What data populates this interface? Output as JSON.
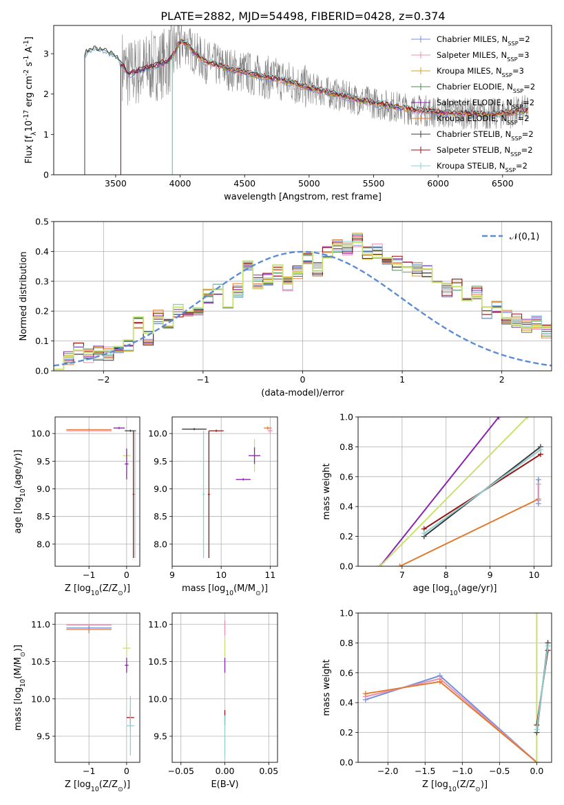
{
  "title": "PLATE=2882, MJD=54498, FIBERID=0428, z=0.374",
  "colors": {
    "chabrier_miles": "#6f8fdb",
    "salpeter_miles": "#e88fb0",
    "kroupa_miles": "#d4a020",
    "chabrier_elodie": "#4f8a4f",
    "salpeter_elodie": "#8a22b0",
    "kroupa_elodie": "#e07a30",
    "chabrier_stelib": "#3a3a3a",
    "salpeter_stelib": "#9a1010",
    "kroupa_stelib": "#8ecfcf",
    "green_yellow": "#c8e070",
    "data_grey": "#808080",
    "normal_curve": "#5b8bd8",
    "grid": "#b0b0b0"
  },
  "legend_labels": [
    "Chabrier MILES, N$_{SSP}$=2",
    "Salpeter MILES, N$_{SSP}$=3",
    "Kroupa MILES, N$_{SSP}$=3",
    "Chabrier ELODIE, N$_{SSP}$=2",
    "Salpeter ELODIE, N$_{SSP}$=2",
    "Kroupa ELODIE, N$_{SSP}$=2",
    "Chabrier STELIB, N$_{SSP}$=2",
    "Salpeter STELIB, N$_{SSP}$=2",
    "Kroupa STELIB, N$_{SSP}$=2"
  ],
  "chart_data": [
    {
      "type": "line",
      "id": "spectrum",
      "xlabel": "wavelength [Angstrom, rest frame]",
      "ylabel": "Flux [f$_\\lambda$10$^{-17}$ erg cm$^{-2}$ s$^{-1}$ A$^{-1}$]",
      "xlim": [
        3020,
        6880
      ],
      "ylim": [
        0,
        3.7
      ],
      "xticks": [
        3500,
        4000,
        4500,
        5000,
        5500,
        6000,
        6500
      ],
      "yticks": [
        0,
        1,
        2,
        3
      ],
      "grid": false,
      "legend": "top-right",
      "model_start_wavelengths": [
        3260,
        3540,
        3940
      ],
      "model_end_wavelength": 6700,
      "continuum": {
        "x": [
          3260,
          3300,
          3400,
          3500,
          3600,
          3700,
          3800,
          3900,
          3950,
          4000,
          4050,
          4100,
          4200,
          4300,
          4400,
          4500,
          4600,
          4700,
          4800,
          4900,
          5000,
          5200,
          5400,
          5600,
          5800,
          6000,
          6200,
          6400,
          6600,
          6700
        ],
        "y": [
          3.0,
          3.1,
          3.12,
          2.95,
          2.5,
          2.6,
          2.7,
          2.8,
          3.0,
          3.3,
          3.25,
          3.05,
          2.8,
          2.7,
          2.6,
          2.55,
          2.45,
          2.4,
          2.35,
          2.25,
          2.15,
          2.0,
          1.85,
          1.72,
          1.62,
          1.55,
          1.52,
          1.5,
          1.55,
          1.6
        ]
      },
      "data_noise_start": 3550
    },
    {
      "type": "histogram",
      "id": "residuals",
      "xlabel": "(data-model)/error",
      "ylabel": "Normed distribution",
      "xlim": [
        -2.5,
        2.5
      ],
      "ylim": [
        0,
        0.5
      ],
      "xticks": [
        -2,
        -1,
        0,
        1,
        2
      ],
      "yticks": [
        0.0,
        0.1,
        0.2,
        0.3,
        0.4,
        0.5
      ],
      "grid": true,
      "legend": "top-right",
      "legend_label": "$\\mathcal{N}(0,1)$",
      "bin_width": 0.1,
      "base_counts": [
        0.03,
        0.04,
        0.07,
        0.05,
        0.06,
        0.06,
        0.08,
        0.09,
        0.16,
        0.11,
        0.18,
        0.15,
        0.2,
        0.19,
        0.21,
        0.25,
        0.28,
        0.22,
        0.27,
        0.36,
        0.3,
        0.31,
        0.33,
        0.29,
        0.33,
        0.38,
        0.34,
        0.4,
        0.42,
        0.41,
        0.44,
        0.39,
        0.4,
        0.37,
        0.36,
        0.35,
        0.34,
        0.33,
        0.31,
        0.27,
        0.29,
        0.23,
        0.26,
        0.2,
        0.22,
        0.18,
        0.17,
        0.15,
        0.16,
        0.13,
        0.14,
        0.12,
        0.11,
        0.1,
        0.09,
        0.08,
        0.06,
        0.05,
        0.04,
        0.03,
        0.03,
        0.03,
        0.02,
        0.02,
        0.02,
        0.02,
        0.02,
        0.01,
        0.01,
        0.01
      ]
    },
    {
      "type": "scatter",
      "id": "z_age",
      "xlabel": "Z [log$_{10}$(Z/Z$_\\odot$)]",
      "ylabel": "age  [log$_{10}$(age/yr)]",
      "xlim": [
        -1.9,
        0.35
      ],
      "ylim": [
        7.6,
        10.3
      ],
      "xticks": [
        -1,
        0
      ],
      "yticks": [
        8.0,
        8.5,
        9.0,
        9.5,
        10.0
      ],
      "grid": true,
      "points": [
        {
          "x": -1.0,
          "y": 10.07,
          "xerr": 0.6,
          "yerr": 0.02,
          "series": "kroupa_elodie"
        },
        {
          "x": -1.0,
          "y": 10.05,
          "xerr": 0.6,
          "yerr": 0.02,
          "series": "salpeter_miles"
        },
        {
          "x": -0.2,
          "y": 10.1,
          "xerr": 0.15,
          "yerr": 0.02,
          "series": "salpeter_elodie"
        },
        {
          "x": 0.1,
          "y": 10.05,
          "xerr": 0.15,
          "yerr": 0.02,
          "series": "chabrier_stelib"
        },
        {
          "x": 0.22,
          "y": 8.9,
          "xerr": 0.02,
          "yerr": 1.15,
          "series": "kroupa_stelib"
        },
        {
          "x": 0.18,
          "y": 8.9,
          "xerr": 0.02,
          "yerr": 1.15,
          "series": "salpeter_stelib"
        },
        {
          "x": 0.0,
          "y": 9.6,
          "xerr": 0.1,
          "yerr": 0.08,
          "series": "green_yellow"
        },
        {
          "x": 0.0,
          "y": 9.45,
          "xerr": 0.05,
          "yerr": 0.28,
          "series": "salpeter_elodie"
        }
      ]
    },
    {
      "type": "scatter",
      "id": "mass_age",
      "xlabel": "mass [log$_{10}$(M/M$_\\odot$)]",
      "ylabel": "",
      "xlim": [
        9.0,
        11.15
      ],
      "ylim": [
        7.6,
        10.3
      ],
      "xticks": [
        9,
        10,
        11
      ],
      "yticks": [
        8.0,
        8.5,
        9.0,
        9.5,
        10.0
      ],
      "grid": true,
      "points": [
        {
          "x": 9.45,
          "y": 10.08,
          "xerr": 0.25,
          "yerr": 0.02,
          "series": "chabrier_stelib"
        },
        {
          "x": 9.64,
          "y": 8.9,
          "xerr": 0.02,
          "yerr": 1.15,
          "series": "kroupa_stelib"
        },
        {
          "x": 9.75,
          "y": 8.9,
          "xerr": 0.02,
          "yerr": 1.15,
          "series": "salpeter_stelib"
        },
        {
          "x": 9.9,
          "y": 10.05,
          "xerr": 0.15,
          "yerr": 0.02,
          "series": "salpeter_stelib"
        },
        {
          "x": 10.95,
          "y": 10.1,
          "xerr": 0.08,
          "yerr": 0.03,
          "series": "kroupa_elodie"
        },
        {
          "x": 11.0,
          "y": 10.05,
          "xerr": 0.05,
          "yerr": 0.05,
          "series": "salpeter_miles"
        },
        {
          "x": 10.68,
          "y": 9.6,
          "xerr": 0.12,
          "yerr": 0.3,
          "series": "green_yellow"
        },
        {
          "x": 10.68,
          "y": 9.6,
          "xerr": 0.12,
          "yerr": 0.15,
          "series": "salpeter_elodie"
        },
        {
          "x": 10.45,
          "y": 9.17,
          "xerr": 0.15,
          "yerr": 0.02,
          "series": "salpeter_elodie"
        }
      ]
    },
    {
      "type": "line",
      "id": "age_weight",
      "xlabel": "age  [log$_{10}$(age/yr)]",
      "ylabel": "mass weight",
      "xlim": [
        6.0,
        10.4
      ],
      "ylim": [
        0,
        1.0
      ],
      "xticks": [
        7,
        8,
        9,
        10
      ],
      "yticks": [
        0.0,
        0.2,
        0.4,
        0.6,
        0.8,
        1.0
      ],
      "grid": true,
      "series": [
        {
          "key": "salpeter_elodie",
          "x": [
            6.5,
            9.2
          ],
          "y": [
            0.0,
            1.0
          ]
        },
        {
          "key": "green_yellow",
          "x": [
            6.5,
            9.85
          ],
          "y": [
            0.0,
            1.0
          ]
        },
        {
          "key": "kroupa_elodie",
          "x": [
            6.95,
            10.1
          ],
          "y": [
            0.0,
            0.45
          ]
        },
        {
          "key": "chabrier_stelib",
          "x": [
            7.5,
            10.15
          ],
          "y": [
            0.2,
            0.8
          ]
        },
        {
          "key": "salpeter_stelib",
          "x": [
            7.5,
            10.15
          ],
          "y": [
            0.25,
            0.75
          ]
        },
        {
          "key": "kroupa_stelib",
          "x": [
            7.5,
            10.15
          ],
          "y": [
            0.22,
            0.78
          ]
        },
        {
          "key": "chabrier_miles",
          "x": [
            10.1,
            10.1
          ],
          "y": [
            0.42,
            0.58
          ]
        },
        {
          "key": "salpeter_miles",
          "x": [
            10.1,
            10.1
          ],
          "y": [
            0.44,
            0.55
          ]
        }
      ]
    },
    {
      "type": "scatter",
      "id": "z_mass",
      "xlabel": "Z [log$_{10}$(Z/Z$_\\odot$)]",
      "ylabel": "mass [log$_{10}$(M/M$_\\odot$)]",
      "xlim": [
        -1.9,
        0.35
      ],
      "ylim": [
        9.15,
        11.15
      ],
      "xticks": [
        -1,
        0
      ],
      "yticks": [
        9.5,
        10.0,
        10.5,
        11.0
      ],
      "grid": true,
      "points": [
        {
          "x": -1.0,
          "y": 10.99,
          "xerr": 0.6,
          "yerr": 0.01,
          "series": "salpeter_miles"
        },
        {
          "x": -1.0,
          "y": 10.93,
          "xerr": 0.6,
          "yerr": 0.05,
          "series": "kroupa_elodie"
        },
        {
          "x": -1.0,
          "y": 10.95,
          "xerr": 0.6,
          "yerr": 0.02,
          "series": "chabrier_miles"
        },
        {
          "x": 0.0,
          "y": 10.68,
          "xerr": 0.1,
          "yerr": 0.1,
          "series": "green_yellow"
        },
        {
          "x": 0.0,
          "y": 10.45,
          "xerr": 0.05,
          "yerr": 0.1,
          "series": "salpeter_elodie"
        },
        {
          "x": 0.1,
          "y": 9.75,
          "xerr": 0.1,
          "yerr": 0.1,
          "series": "salpeter_stelib"
        },
        {
          "x": 0.1,
          "y": 9.64,
          "xerr": 0.1,
          "yerr": 0.4,
          "series": "kroupa_stelib"
        }
      ]
    },
    {
      "type": "scatter",
      "id": "ebv_mass",
      "xlabel": "E(B-V)",
      "ylabel": "",
      "xlim": [
        -0.06,
        0.06
      ],
      "ylim": [
        9.15,
        11.15
      ],
      "xticks": [
        -0.05,
        0.0,
        0.05
      ],
      "xtick_labels": [
        "−0.05",
        "0.00",
        "0.05"
      ],
      "yticks": [
        9.5,
        10.0,
        10.5,
        11.0
      ],
      "grid": true,
      "points": [
        {
          "x": 0.0,
          "y": 10.95,
          "xerr": 0.0,
          "yerr": 0.1,
          "series": "salpeter_miles"
        },
        {
          "x": 0.0,
          "y": 10.68,
          "xerr": 0.0,
          "yerr": 0.12,
          "series": "green_yellow"
        },
        {
          "x": 0.0,
          "y": 10.45,
          "xerr": 0.0,
          "yerr": 0.1,
          "series": "salpeter_elodie"
        },
        {
          "x": 0.0,
          "y": 9.75,
          "xerr": 0.0,
          "yerr": 0.1,
          "series": "salpeter_stelib"
        },
        {
          "x": 0.0,
          "y": 9.5,
          "xerr": 0.0,
          "yerr": 0.28,
          "series": "kroupa_stelib"
        }
      ]
    },
    {
      "type": "line",
      "id": "z_weight",
      "xlabel": "Z [log$_{10}$(Z/Z$_\\odot$)]",
      "ylabel": "mass weight",
      "xlim": [
        -2.4,
        0.2
      ],
      "ylim": [
        0,
        1.0
      ],
      "xticks": [
        -2.0,
        -1.5,
        -1.0,
        -0.5,
        0.0
      ],
      "xtick_labels": [
        "−2.0",
        "−1.5",
        "−1.0",
        "−0.5",
        "0.0"
      ],
      "yticks": [
        0.0,
        0.2,
        0.4,
        0.6,
        0.8,
        1.0
      ],
      "grid": true,
      "series": [
        {
          "key": "chabrier_miles",
          "x": [
            -2.3,
            -1.3,
            0.0
          ],
          "y": [
            0.42,
            0.58,
            0.0
          ]
        },
        {
          "key": "salpeter_miles",
          "x": [
            -2.3,
            -1.3,
            0.0
          ],
          "y": [
            0.44,
            0.56,
            0.0
          ]
        },
        {
          "key": "kroupa_elodie",
          "x": [
            -2.3,
            -1.3,
            0.0
          ],
          "y": [
            0.46,
            0.54,
            0.0
          ]
        },
        {
          "key": "green_yellow",
          "x": [
            0.0,
            0.0
          ],
          "y": [
            0.0,
            1.0
          ]
        },
        {
          "key": "chabrier_stelib",
          "x": [
            0.0,
            0.15
          ],
          "y": [
            0.2,
            0.8
          ]
        },
        {
          "key": "salpeter_stelib",
          "x": [
            0.0,
            0.15
          ],
          "y": [
            0.25,
            0.75
          ]
        },
        {
          "key": "kroupa_stelib",
          "x": [
            0.0,
            0.15
          ],
          "y": [
            0.22,
            0.78
          ]
        }
      ]
    }
  ]
}
